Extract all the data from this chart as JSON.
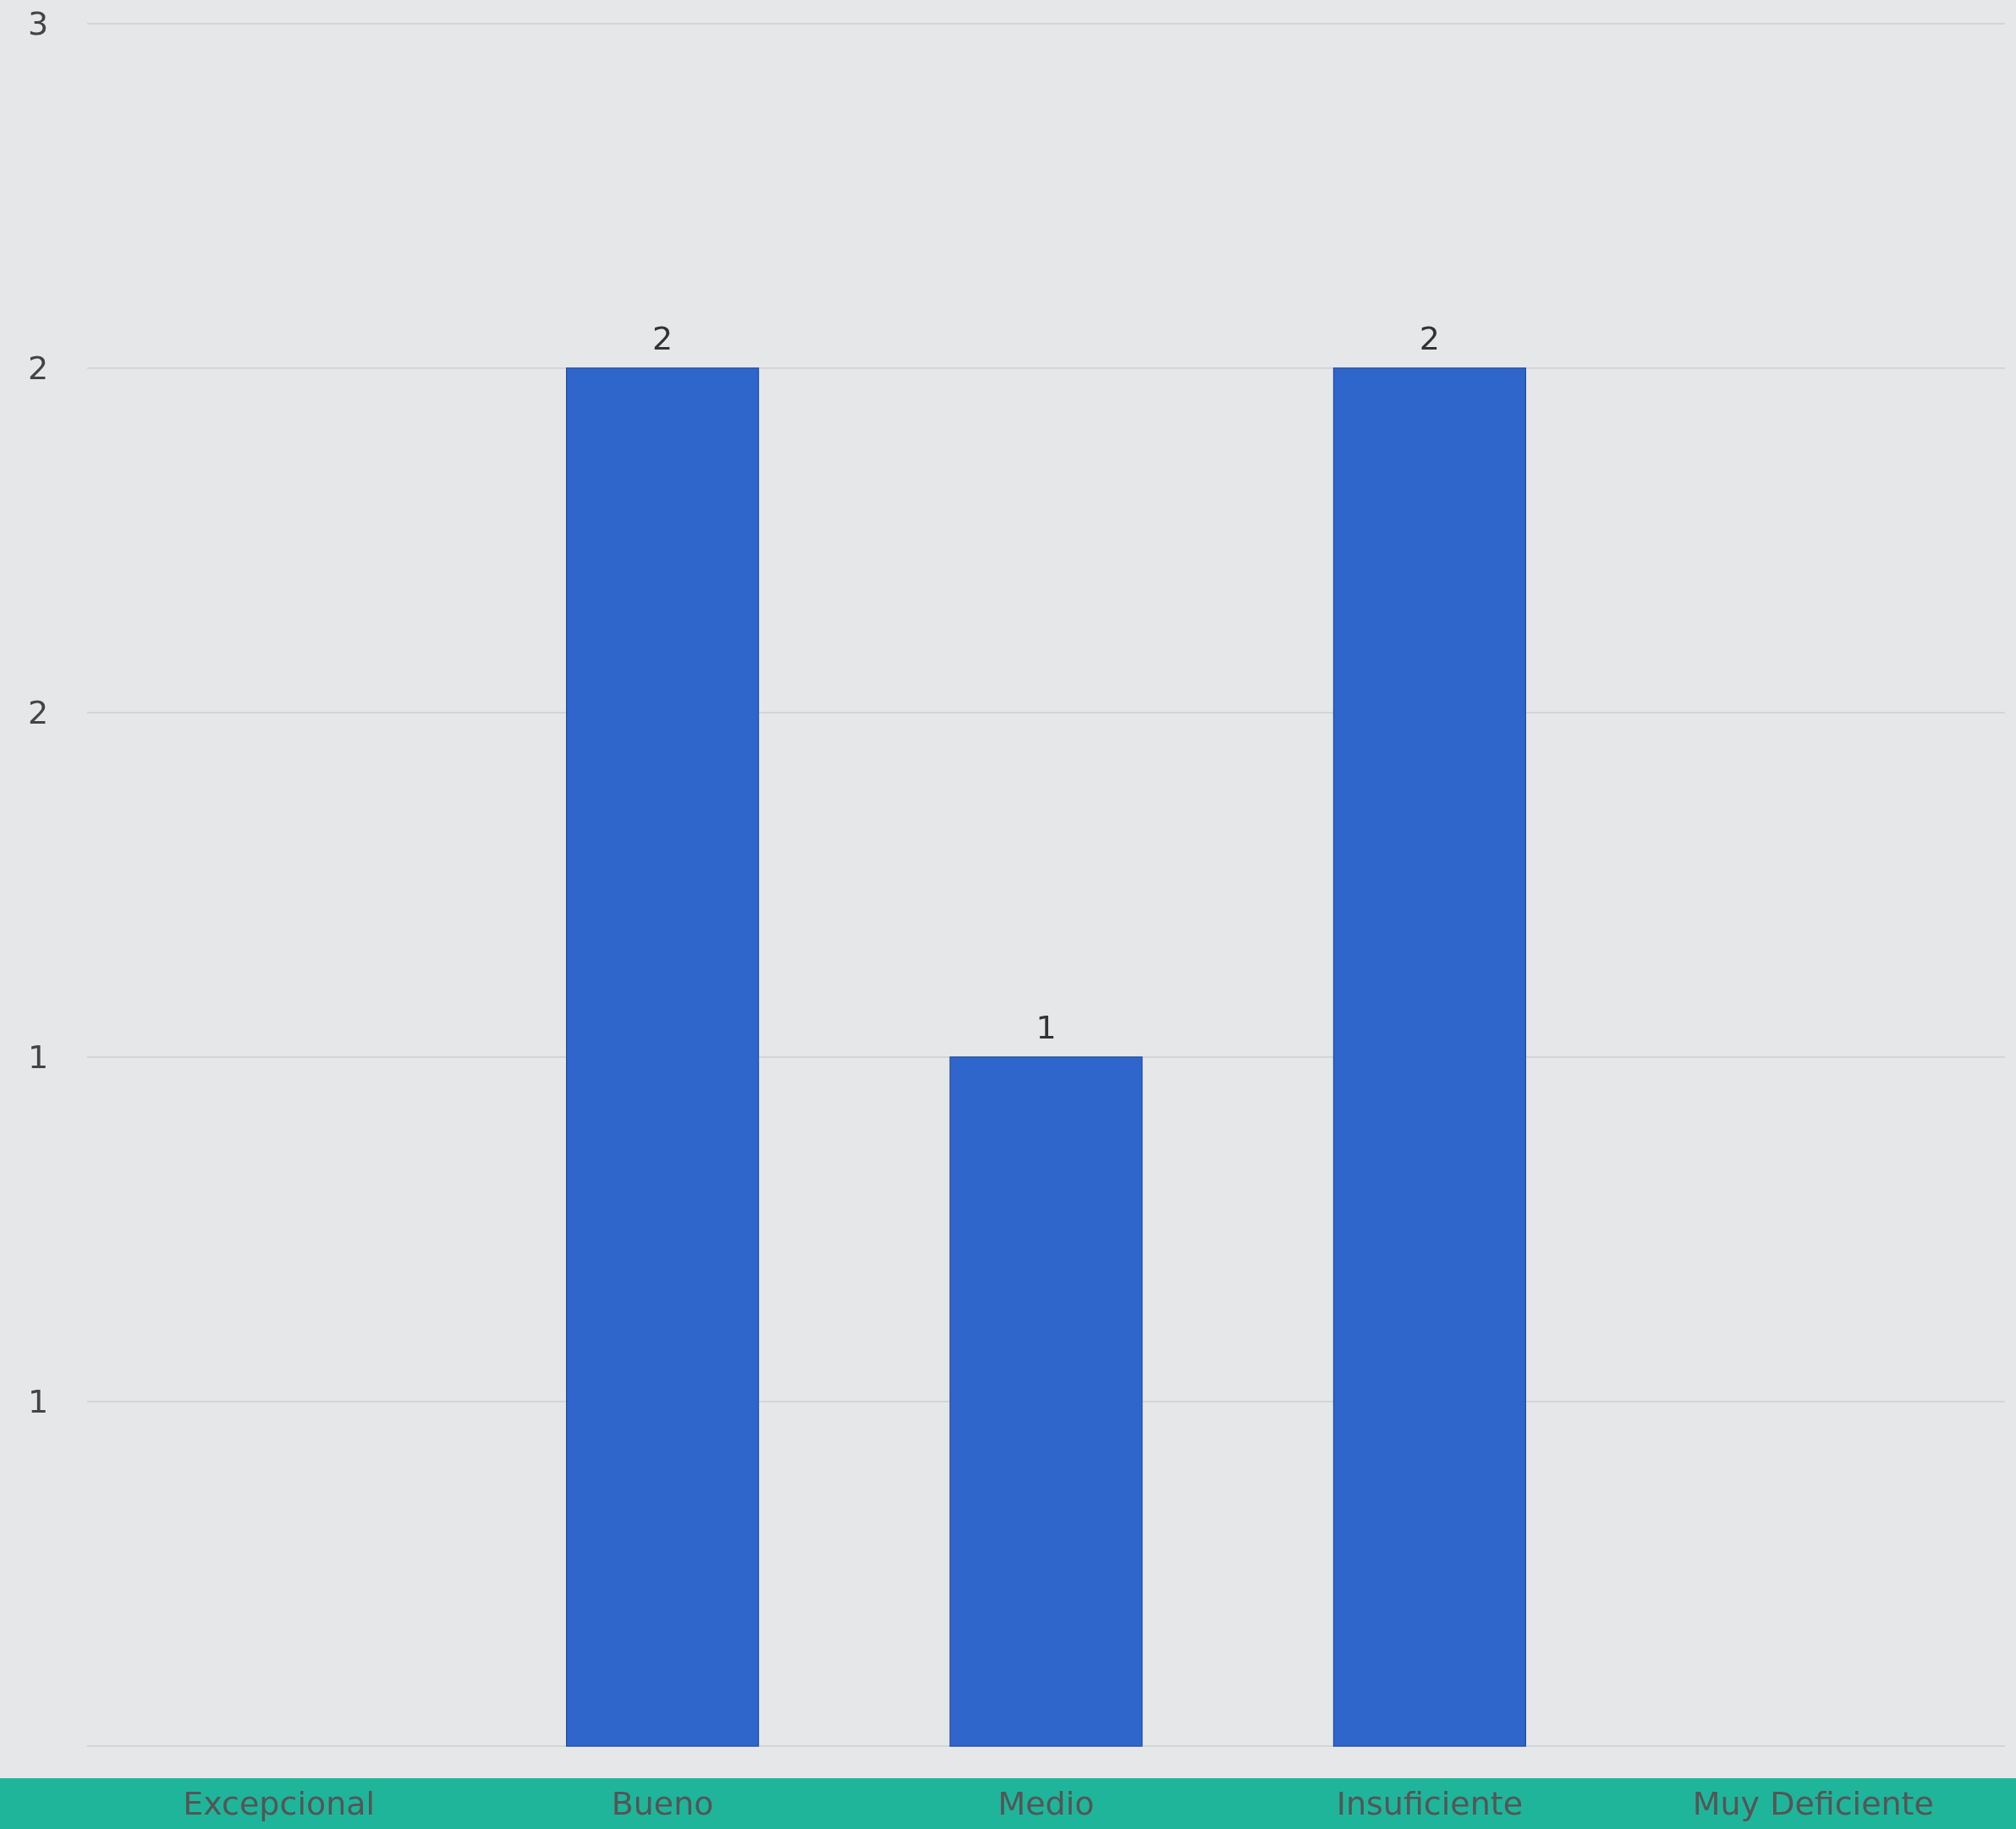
{
  "chart_data": {
    "type": "bar",
    "categories": [
      "Excepcional",
      "Bueno",
      "Medio",
      "Insuficiente",
      "Muy Deficiente"
    ],
    "values": [
      0,
      2,
      1,
      2,
      0
    ],
    "value_labels": [
      null,
      "2",
      "1",
      "2",
      null
    ],
    "color": "#2f66cc",
    "ylim": [
      0,
      2.5
    ],
    "yticks": [
      {
        "value": 0,
        "label": null
      },
      {
        "value": 0.5,
        "label": "1"
      },
      {
        "value": 1,
        "label": "1"
      },
      {
        "value": 1.5,
        "label": "2"
      },
      {
        "value": 2,
        "label": "2"
      },
      {
        "value": 2.5,
        "label": "3"
      }
    ],
    "grid": "y"
  }
}
